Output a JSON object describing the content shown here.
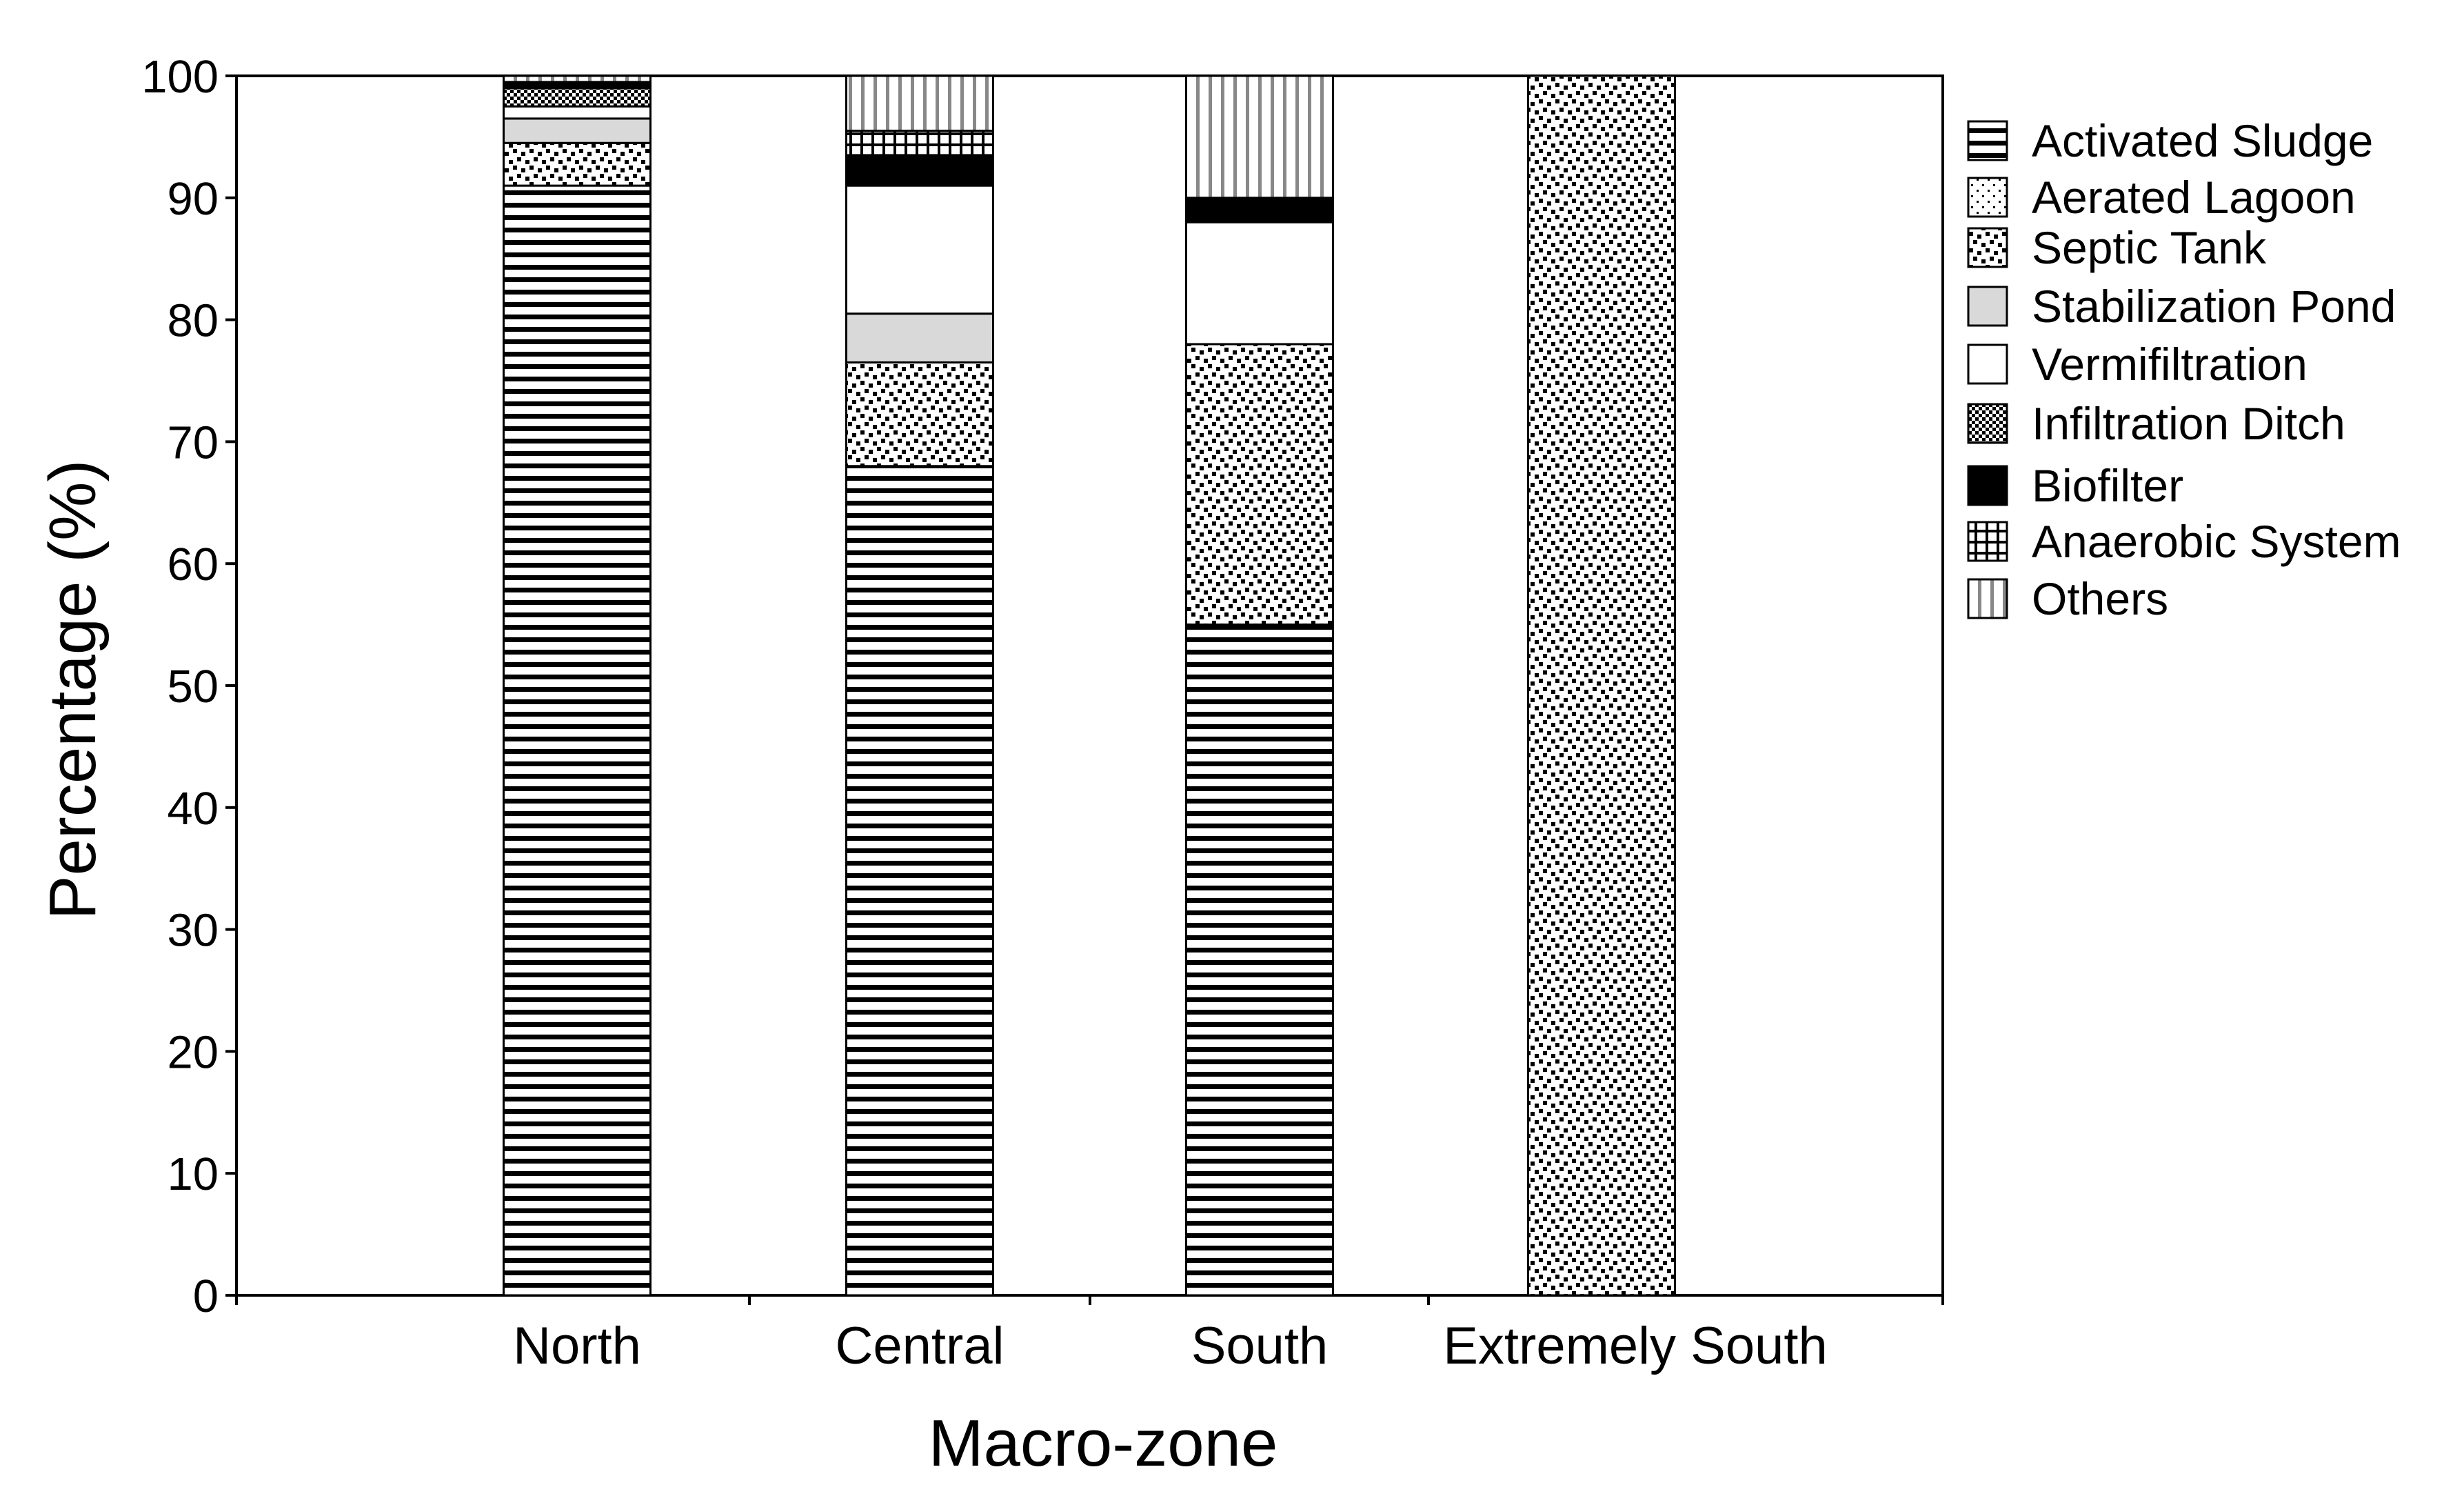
{
  "chart_data": {
    "type": "bar",
    "stacked": true,
    "title": "",
    "xlabel": "Macro-zone",
    "ylabel": "Percentage (%)",
    "ylim": [
      0,
      100
    ],
    "yticks": [
      0,
      10,
      20,
      30,
      40,
      50,
      60,
      70,
      80,
      90,
      100
    ],
    "grid": false,
    "legend_position": "right",
    "categories": [
      "North",
      "Central",
      "South",
      "Extremely South"
    ],
    "series": [
      {
        "name": "Activated Sludge",
        "values": [
          91.0,
          68.0,
          55.0,
          0.0
        ],
        "pattern": "horizontal-lines"
      },
      {
        "name": "Aerated Lagoon",
        "values": [
          0.0,
          0.0,
          0.0,
          0.0
        ],
        "pattern": "sparse-dots"
      },
      {
        "name": "Septic Tank",
        "values": [
          3.5,
          8.5,
          23.0,
          100.0
        ],
        "pattern": "checker-dots"
      },
      {
        "name": "Stabilization Pond",
        "values": [
          2.0,
          4.0,
          0.0,
          0.0
        ],
        "pattern": "light-gray"
      },
      {
        "name": "Vermifiltration",
        "values": [
          1.0,
          10.5,
          10.0,
          0.0
        ],
        "pattern": "white"
      },
      {
        "name": "Infiltration Ditch",
        "values": [
          1.5,
          0.0,
          0.0,
          0.0
        ],
        "pattern": "small-checker"
      },
      {
        "name": "Biofilter",
        "values": [
          0.5,
          2.5,
          2.0,
          0.0
        ],
        "pattern": "black"
      },
      {
        "name": "Anaerobic System",
        "values": [
          0.0,
          2.0,
          0.0,
          0.0
        ],
        "pattern": "grid"
      },
      {
        "name": "Others",
        "values": [
          0.5,
          4.5,
          10.0,
          0.0
        ],
        "pattern": "vertical-lines"
      }
    ]
  }
}
